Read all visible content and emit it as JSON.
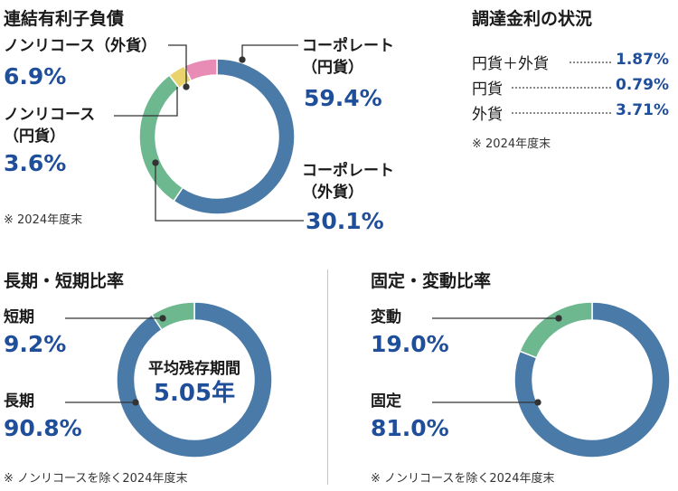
{
  "chart_data": [
    {
      "type": "pie",
      "title": "連結有利子負債",
      "categories": [
        "コーポレート（円貨）",
        "コーポレート（外貨）",
        "ノンリコース（円貨）",
        "ノンリコース（外貨）"
      ],
      "values": [
        59.4,
        30.1,
        3.6,
        6.9
      ],
      "colors": [
        "#4a7aa8",
        "#6db88e",
        "#e9d36d",
        "#e88cb6"
      ],
      "labels": {
        "corp_jpy_1": "コーポレート",
        "corp_jpy_2": "（円貨）",
        "corp_jpy_val": "59.4%",
        "corp_fx_1": "コーポレート",
        "corp_fx_2": "（外貨）",
        "corp_fx_val": "30.1%",
        "nr_jpy_1": "ノンリコース",
        "nr_jpy_2": "（円貨）",
        "nr_jpy_val": "3.6%",
        "nr_fx_1": "ノンリコース（外貨）",
        "nr_fx_val": "6.9%"
      },
      "note": "※ 2024年度末"
    },
    {
      "type": "pie",
      "title": "長期・短期比率",
      "categories": [
        "長期",
        "短期"
      ],
      "values": [
        90.8,
        9.2
      ],
      "colors": [
        "#4a7aa8",
        "#6db88e"
      ],
      "labels": {
        "long": "長期",
        "long_val": "90.8%",
        "short": "短期",
        "short_val": "9.2%"
      },
      "center_label": "平均残存期間",
      "center_value": "5.05年",
      "note": "※ ノンリコースを除く2024年度末"
    },
    {
      "type": "pie",
      "title": "固定・変動比率",
      "categories": [
        "固定",
        "変動"
      ],
      "values": [
        81.0,
        19.0
      ],
      "colors": [
        "#4a7aa8",
        "#6db88e"
      ],
      "labels": {
        "fixed": "固定",
        "fixed_val": "81.0%",
        "floating": "変動",
        "floating_val": "19.0%"
      },
      "note": "※ ノンリコースを除く2024年度末"
    },
    {
      "type": "table",
      "title": "調達金利の状況",
      "rows": [
        {
          "label": "円貨＋外貨",
          "value": "1.87%"
        },
        {
          "label": "円貨",
          "value": "0.79%"
        },
        {
          "label": "外貨",
          "value": "3.71%"
        }
      ],
      "note": "※ 2024年度末"
    }
  ]
}
